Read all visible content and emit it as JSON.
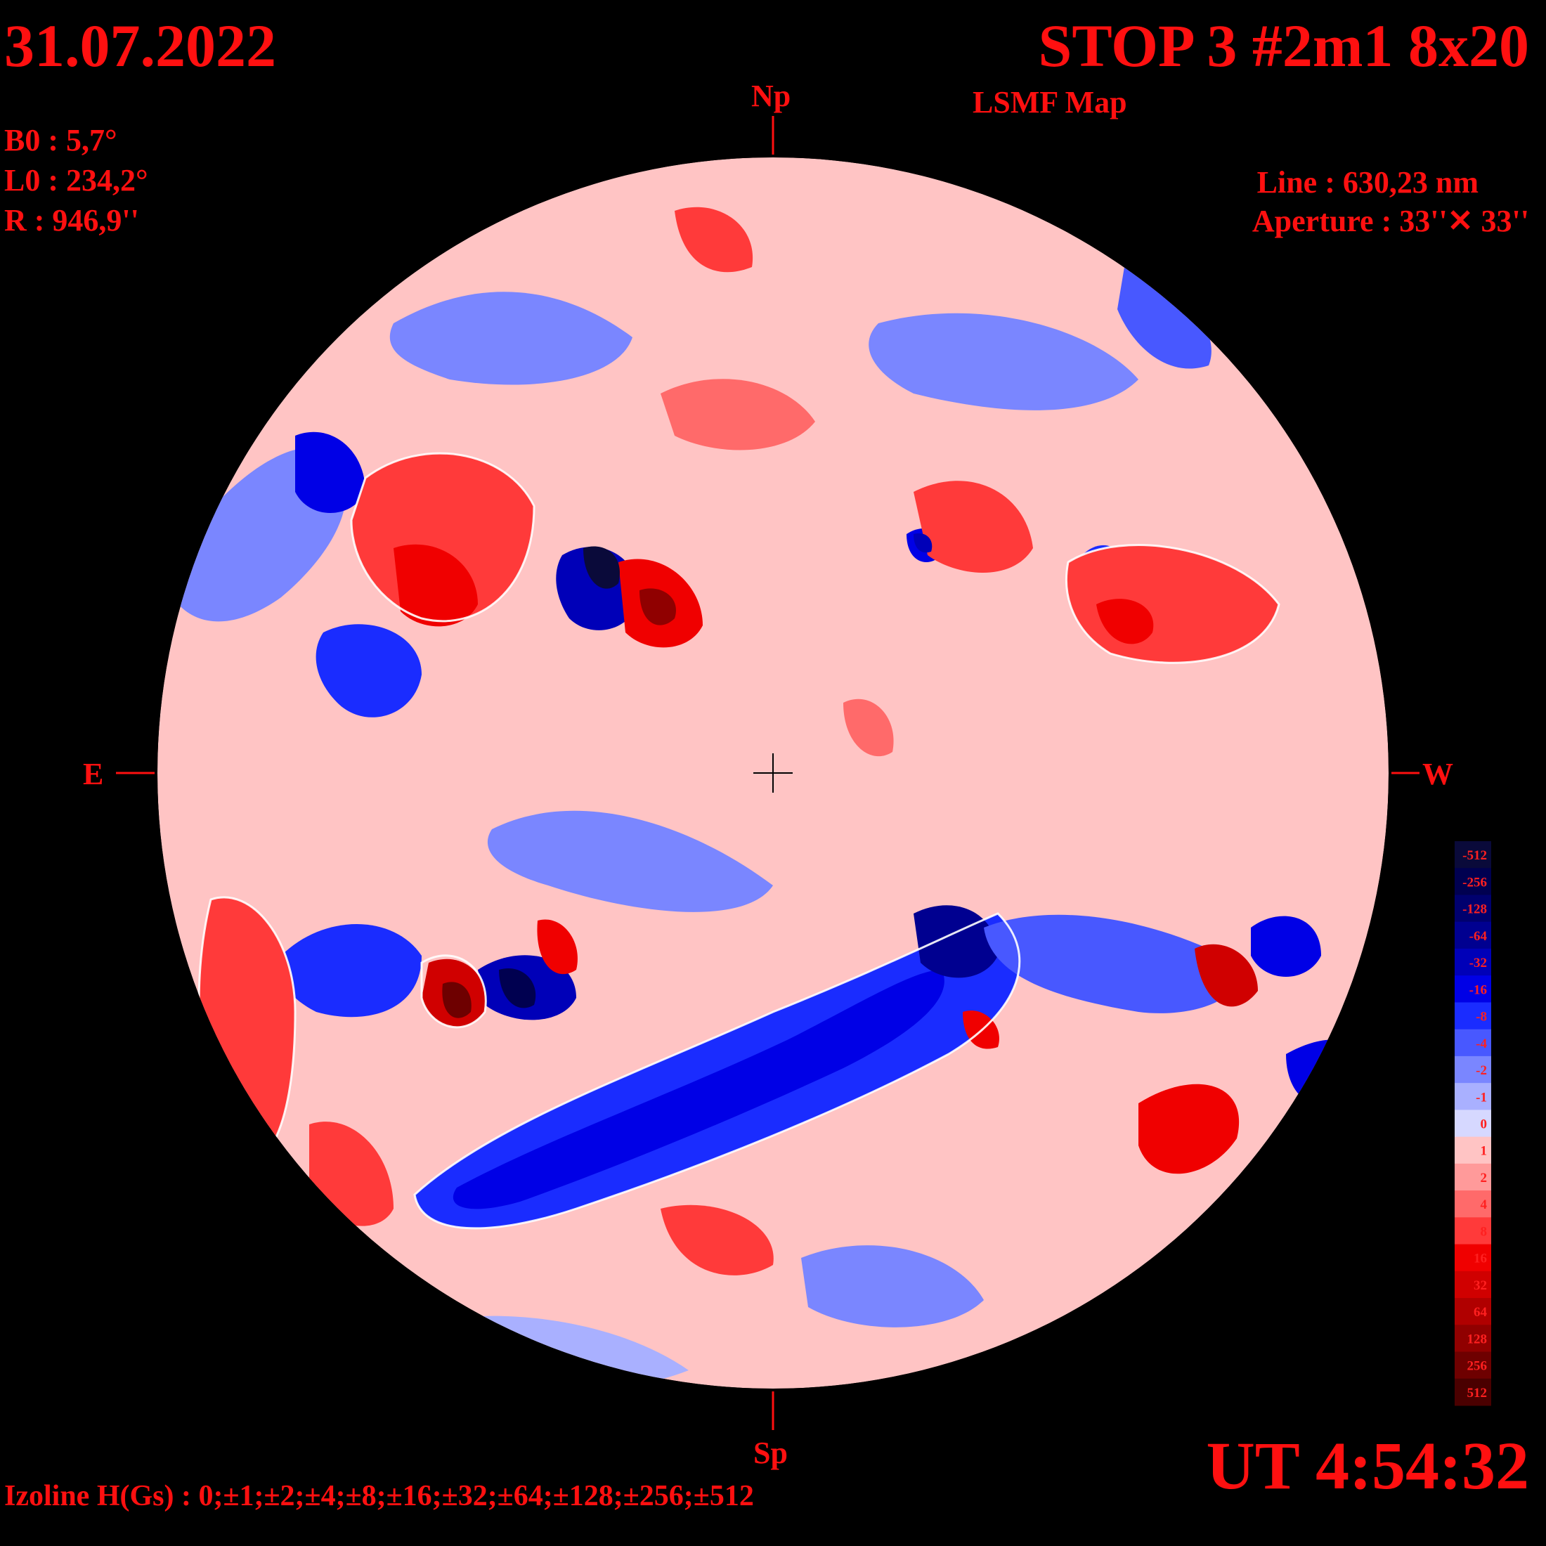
{
  "header": {
    "date": "31.07.2022",
    "title": "STOP 3 #2m1 8x20",
    "subtitle": "LSMF  Map"
  },
  "parameters": {
    "b0": "B0 : 5,7°",
    "l0": "L0 : 234,2°",
    "r": "R  : 946,9''"
  },
  "instrument": {
    "line": "Line :  630,23 nm",
    "aperture": "Aperture : 33''✕ 33''"
  },
  "compass": {
    "north": "Np",
    "south": "Sp",
    "east": "E",
    "west": "W"
  },
  "time": "UT 4:54:32",
  "izoline": "Izoline H(Gs) : 0;±1;±2;±4;±8;±16;±32;±64;±128;±256;±512",
  "colors": {
    "background": "#000000",
    "label": "#ff1010",
    "contour": "#ffffff"
  },
  "scale": {
    "levels": [
      {
        "label": "-512",
        "color": "#0a0a3a"
      },
      {
        "label": "-256",
        "color": "#000050"
      },
      {
        "label": "-128",
        "color": "#00006e"
      },
      {
        "label": "-64",
        "color": "#000090"
      },
      {
        "label": "-32",
        "color": "#0000b8"
      },
      {
        "label": "-16",
        "color": "#0000e6"
      },
      {
        "label": "-8",
        "color": "#1a2cff"
      },
      {
        "label": "-4",
        "color": "#4858ff"
      },
      {
        "label": "-2",
        "color": "#7a86ff"
      },
      {
        "label": "-1",
        "color": "#a9b0ff"
      },
      {
        "label": "0",
        "color": "#d6d8ff"
      },
      {
        "label": "1",
        "color": "#ffc4c4"
      },
      {
        "label": "2",
        "color": "#ff9a9a"
      },
      {
        "label": "4",
        "color": "#ff6a6a"
      },
      {
        "label": "8",
        "color": "#ff3a3a"
      },
      {
        "label": "16",
        "color": "#f00000"
      },
      {
        "label": "32",
        "color": "#d00000"
      },
      {
        "label": "64",
        "color": "#b00000"
      },
      {
        "label": "128",
        "color": "#900000"
      },
      {
        "label": "256",
        "color": "#6e0000"
      },
      {
        "label": "512",
        "color": "#4a0000"
      }
    ]
  }
}
